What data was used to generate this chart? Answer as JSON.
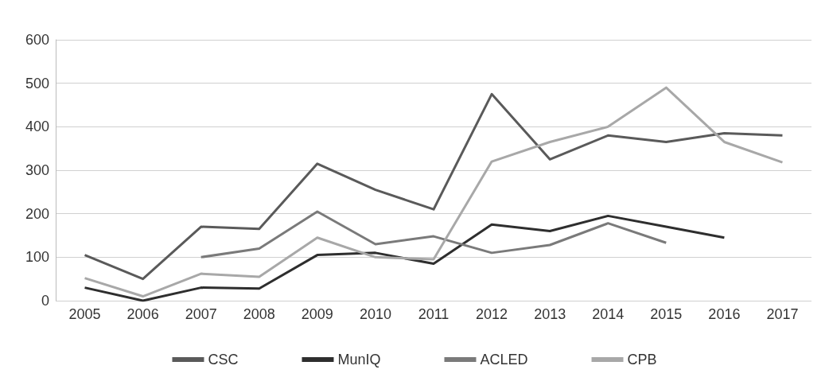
{
  "chart_data": {
    "type": "line",
    "categories": [
      "2005",
      "2006",
      "2007",
      "2008",
      "2009",
      "2010",
      "2011",
      "2012",
      "2013",
      "2014",
      "2015",
      "2016",
      "2017"
    ],
    "series": [
      {
        "name": "CSC",
        "color": "#5a5a5a",
        "values": [
          105,
          50,
          170,
          165,
          315,
          255,
          210,
          475,
          325,
          380,
          365,
          385,
          380
        ]
      },
      {
        "name": "MunIQ",
        "color": "#2e2e2e",
        "values": [
          30,
          0,
          30,
          28,
          105,
          110,
          85,
          175,
          160,
          195,
          170,
          145,
          null
        ]
      },
      {
        "name": "ACLED",
        "color": "#7a7a7a",
        "values": [
          null,
          null,
          100,
          120,
          205,
          130,
          148,
          110,
          128,
          178,
          133,
          null,
          null
        ]
      },
      {
        "name": "CPB",
        "color": "#a8a8a8",
        "values": [
          52,
          10,
          62,
          55,
          145,
          100,
          95,
          320,
          365,
          400,
          490,
          365,
          318
        ]
      }
    ],
    "ylim": [
      0,
      600
    ],
    "yticks": [
      0,
      100,
      200,
      300,
      400,
      500,
      600
    ],
    "grid": "y",
    "legend": "bottom",
    "marker": "none",
    "line_style": "solid"
  }
}
